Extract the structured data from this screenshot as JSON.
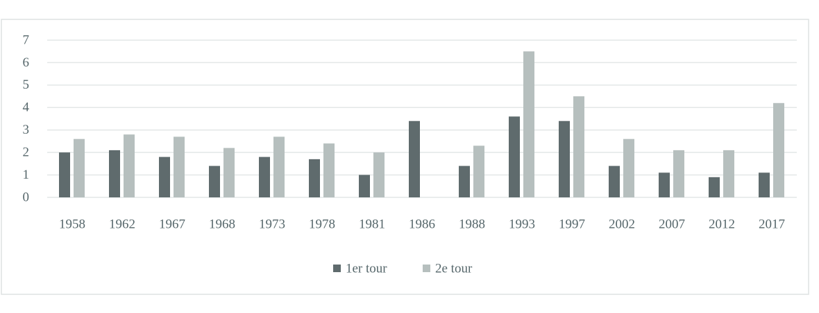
{
  "chart_data": {
    "type": "bar",
    "categories": [
      "1958",
      "1962",
      "1967",
      "1968",
      "1973",
      "1978",
      "1981",
      "1986",
      "1988",
      "1993",
      "1997",
      "2002",
      "2007",
      "2012",
      "2017"
    ],
    "series": [
      {
        "name": "1er tour",
        "color": "#5f6b6d",
        "values": [
          2.0,
          2.1,
          1.8,
          1.4,
          1.8,
          1.7,
          1.0,
          3.4,
          1.4,
          3.6,
          3.4,
          1.4,
          1.1,
          0.9,
          1.1
        ]
      },
      {
        "name": "2e tour",
        "color": "#b6bfbe",
        "values": [
          2.6,
          2.8,
          2.7,
          2.2,
          2.7,
          2.4,
          2.0,
          null,
          2.3,
          6.5,
          4.5,
          2.6,
          2.1,
          2.1,
          4.2
        ]
      }
    ],
    "ylim": [
      0,
      7
    ],
    "yticks": [
      0,
      1,
      2,
      3,
      4,
      5,
      6,
      7
    ],
    "grid": true,
    "legend": "bottom"
  }
}
